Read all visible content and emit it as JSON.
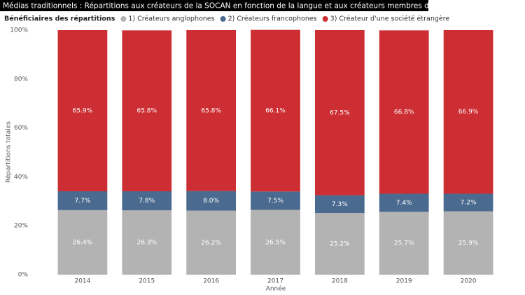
{
  "chart_data": {
    "type": "stacked_bar",
    "title": "Médias traditionnels : Répartitions aux créateurs de la SOCAN en fonction de la langue et aux créateurs membres de sociétés étrangères",
    "legend_title": "Bénéficiaires des répartitions",
    "y_label": "Répartitions totales",
    "x_label": "Année",
    "categories": [
      "2014",
      "2015",
      "2016",
      "2017",
      "2018",
      "2019",
      "2020"
    ],
    "series": [
      {
        "name": "1) Créateurs anglophones",
        "color": "#b3b3b3",
        "values": [
          26.4,
          26.3,
          26.2,
          26.5,
          25.2,
          25.7,
          25.9
        ],
        "value_labels": [
          "26.4%",
          "26.3%",
          "26.2%",
          "26.5%",
          "25.2%",
          "25.7%",
          "25.9%"
        ]
      },
      {
        "name": "2) Créateurs francophones",
        "color": "#4a6b8f",
        "values": [
          7.7,
          7.8,
          8.0,
          7.5,
          7.3,
          7.4,
          7.2
        ],
        "value_labels": [
          "7.7%",
          "7.8%",
          "8.0%",
          "7.5%",
          "7.3%",
          "7.4%",
          "7.2%"
        ]
      },
      {
        "name": "3) Créateur d'une société étrangère",
        "color": "#cc2e33",
        "values": [
          65.9,
          65.8,
          65.8,
          66.1,
          67.5,
          66.8,
          66.9
        ],
        "value_labels": [
          "65.9%",
          "65.8%",
          "65.8%",
          "66.1%",
          "67.5%",
          "66.8%",
          "66.9%"
        ]
      }
    ],
    "ylim": [
      0,
      100
    ],
    "yticks": [
      {
        "value": 0,
        "label": "0%"
      },
      {
        "value": 20,
        "label": "20%"
      },
      {
        "value": 40,
        "label": "40%"
      },
      {
        "value": 60,
        "label": "60%"
      },
      {
        "value": 80,
        "label": "80%"
      },
      {
        "value": 100,
        "label": "100%"
      }
    ]
  }
}
